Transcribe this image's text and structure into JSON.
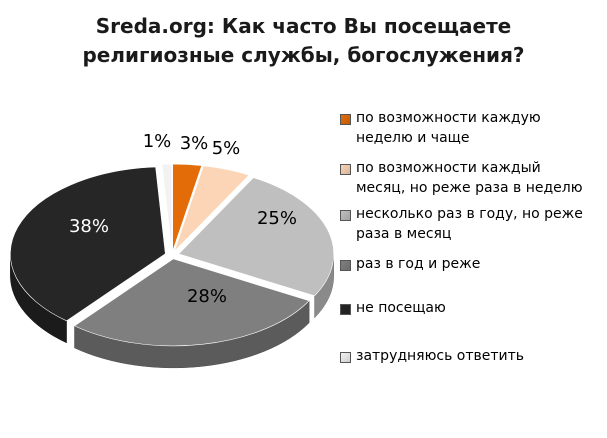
{
  "title": {
    "line1": "Sreda.org: Как часто Вы посещаете",
    "line2": "религиозные службы, богослужения?"
  },
  "chart_data": {
    "type": "pie",
    "style": "3d-exploded",
    "legend_position": "right",
    "slices": [
      {
        "label": "по возможности каждую неделю и чаще",
        "value": 3,
        "display": "3%",
        "color": "#e36c09",
        "legend_lines": [
          "по возможности каждую",
          "неделю и чаще"
        ]
      },
      {
        "label": "по возможности каждый месяц, но реже раза в неделю",
        "value": 5,
        "display": "5%",
        "color": "#fbd5b5",
        "legend_lines": [
          "по возможности каждый",
          "месяц, но реже раза в неделю"
        ]
      },
      {
        "label": "несколько раз в году, но реже раза в месяц",
        "value": 25,
        "display": "25%",
        "color": "#bfbfbf",
        "legend_lines": [
          "несколько раз в году, но реже",
          "раза в месяц"
        ]
      },
      {
        "label": "раз в год и реже",
        "value": 28,
        "display": "28%",
        "color": "#7f7f7f",
        "legend_lines": [
          "раз в год и реже"
        ]
      },
      {
        "label": "не посещаю",
        "value": 38,
        "display": "38%",
        "color": "#262626",
        "legend_lines": [
          "не посещаю"
        ]
      },
      {
        "label": "затрудняюсь ответить",
        "value": 1,
        "display": "1%",
        "color": "#f2f2f2",
        "legend_lines": [
          "затрудняюсь ответить"
        ]
      }
    ]
  }
}
